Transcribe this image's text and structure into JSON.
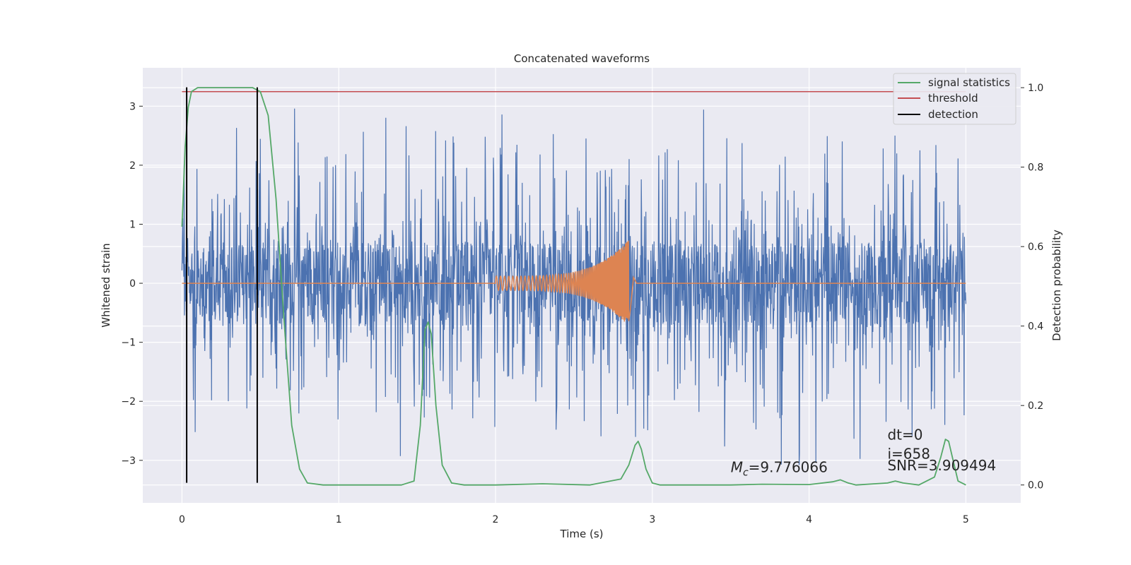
{
  "chart_data": {
    "type": "line",
    "title": "Concatenated waveforms",
    "xlabel": "Time (s)",
    "ylabel_left": "Whitened strain",
    "ylabel_right": "Detection probability",
    "xlim": [
      -0.25,
      5.35
    ],
    "ylim_left": [
      -3.72,
      3.65
    ],
    "ylim_right": [
      -0.045,
      1.05
    ],
    "x_ticks": [
      "0",
      "1",
      "2",
      "3",
      "4",
      "5"
    ],
    "x_tick_values": [
      0,
      1,
      2,
      3,
      4,
      5
    ],
    "y_ticks_left": [
      "−3",
      "−2",
      "−1",
      "0",
      "1",
      "2",
      "3"
    ],
    "y_tick_values_left": [
      -3,
      -2,
      -1,
      0,
      1,
      2,
      3
    ],
    "y_ticks_right": [
      "0.0",
      "0.2",
      "0.4",
      "0.6",
      "0.8",
      "1.0"
    ],
    "y_tick_values_right": [
      0.0,
      0.2,
      0.4,
      0.6,
      0.8,
      1.0
    ],
    "grid": true,
    "legend_position": "top-right",
    "legend": [
      "signal statistics",
      "threshold",
      "detection"
    ],
    "colors": {
      "strain": "#4c72b0",
      "template": "#dd8452",
      "signal_statistics": "#55a868",
      "threshold": "#c44e52",
      "detection": "#000000",
      "axes_bg": "#eaeaf2",
      "grid": "#ffffff"
    },
    "strain_noise": {
      "t_start": 0,
      "t_end": 5,
      "band_amplitude": 0.7,
      "envelope": [
        0.9,
        3.3,
        3.3
      ],
      "description_hidden": true
    },
    "template_waveform": {
      "t_start": 2.0,
      "t_merger": 2.85,
      "peak_amplitude": 0.73,
      "start_amplitude": 0.12
    },
    "signal_statistics": {
      "x": [
        0,
        0.02,
        0.04,
        0.06,
        0.1,
        0.2,
        0.35,
        0.45,
        0.5,
        0.55,
        0.6,
        0.65,
        0.7,
        0.75,
        0.8,
        0.9,
        1.2,
        1.4,
        1.48,
        1.52,
        1.55,
        1.57,
        1.59,
        1.62,
        1.66,
        1.72,
        1.8,
        2.0,
        2.3,
        2.6,
        2.8,
        2.85,
        2.89,
        2.91,
        2.93,
        2.96,
        3.0,
        3.05,
        3.1,
        3.5,
        3.7,
        4.0,
        4.15,
        4.2,
        4.25,
        4.3,
        4.5,
        4.55,
        4.6,
        4.7,
        4.8,
        4.84,
        4.87,
        4.89,
        4.92,
        4.95,
        5.0
      ],
      "y": [
        0.65,
        0.85,
        0.95,
        0.99,
        1.0,
        1.0,
        1.0,
        1.0,
        0.99,
        0.93,
        0.72,
        0.42,
        0.15,
        0.04,
        0.005,
        0.0,
        0.0,
        0.0,
        0.01,
        0.15,
        0.39,
        0.41,
        0.38,
        0.2,
        0.05,
        0.005,
        0.0,
        0.0,
        0.003,
        0.0,
        0.015,
        0.05,
        0.1,
        0.11,
        0.09,
        0.04,
        0.005,
        0.0,
        0.0,
        0.0,
        0.002,
        0.001,
        0.008,
        0.013,
        0.005,
        0.0,
        0.005,
        0.01,
        0.005,
        0.0,
        0.02,
        0.07,
        0.115,
        0.11,
        0.06,
        0.01,
        0.0
      ]
    },
    "threshold_value": 0.99,
    "detections": [
      0.03,
      0.48
    ],
    "detection_range": [
      -3.38,
      3.32
    ],
    "annotations": {
      "mc": "=9.776066",
      "mc_symbol": "M",
      "mc_subscript": "c",
      "dt": "dt=0",
      "i": "i=658",
      "snr": "SNR=3.909494"
    },
    "annotation_positions_data": {
      "mc": [
        3.5,
        -3.2
      ],
      "dt": [
        4.5,
        -2.65
      ],
      "i": [
        4.5,
        -2.97
      ],
      "snr": [
        4.5,
        -3.17
      ]
    }
  }
}
